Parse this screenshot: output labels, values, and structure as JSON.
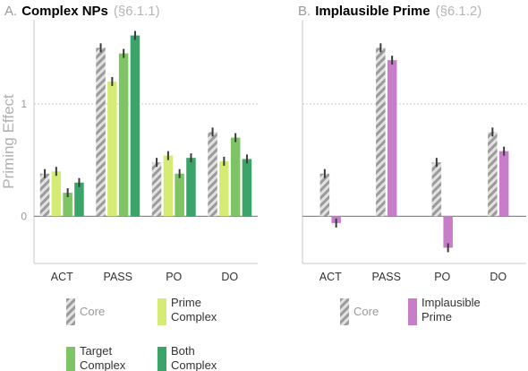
{
  "chart_data": [
    {
      "type": "bar",
      "panel_letter": "A.",
      "title": "Complex NPs",
      "subtitle": "(§6.1.1)",
      "ylabel": "Priming Effect",
      "xlabel": "",
      "ylim": [
        -0.42,
        1.75
      ],
      "yticks": [
        0,
        1
      ],
      "gridlines": [
        0,
        1
      ],
      "categories": [
        "ACT",
        "PASS",
        "PO",
        "DO"
      ],
      "series": [
        {
          "name": "Core",
          "color": "#9e9e9e",
          "pattern": "hatch",
          "values": [
            0.38,
            1.5,
            0.48,
            0.75
          ],
          "errors": [
            0.04,
            0.04,
            0.04,
            0.04
          ]
        },
        {
          "name": "Prime Complex",
          "color": "#d4ec74",
          "pattern": "solid",
          "values": [
            0.4,
            1.2,
            0.54,
            0.49
          ],
          "errors": [
            0.04,
            0.04,
            0.04,
            0.04
          ]
        },
        {
          "name": "Target Complex",
          "color": "#7ec464",
          "pattern": "solid",
          "values": [
            0.21,
            1.45,
            0.38,
            0.7
          ],
          "errors": [
            0.04,
            0.04,
            0.04,
            0.04
          ]
        },
        {
          "name": "Both Complex",
          "color": "#3ba468",
          "pattern": "solid",
          "values": [
            0.3,
            1.61,
            0.52,
            0.51
          ],
          "errors": [
            0.04,
            0.04,
            0.04,
            0.04
          ]
        }
      ],
      "legend": [
        {
          "label": "Core",
          "color": "#9e9e9e",
          "pattern": "hatch"
        },
        {
          "label": "Prime\nComplex",
          "color": "#d4ec74",
          "pattern": "solid"
        },
        {
          "label": "Target\nComplex",
          "color": "#7ec464",
          "pattern": "solid"
        },
        {
          "label": "Both\nComplex",
          "color": "#3ba468",
          "pattern": "solid"
        }
      ]
    },
    {
      "type": "bar",
      "panel_letter": "B.",
      "title": "Implausible Prime",
      "subtitle": "(§6.1.2)",
      "ylabel": "",
      "xlabel": "",
      "ylim": [
        -0.42,
        1.75
      ],
      "yticks": [],
      "gridlines": [
        0,
        1
      ],
      "categories": [
        "ACT",
        "PASS",
        "PO",
        "DO"
      ],
      "series": [
        {
          "name": "Core",
          "color": "#9e9e9e",
          "pattern": "hatch",
          "values": [
            0.38,
            1.5,
            0.48,
            0.75
          ],
          "errors": [
            0.04,
            0.04,
            0.04,
            0.04
          ]
        },
        {
          "name": "Implausible Prime",
          "color": "#c77dc7",
          "pattern": "solid",
          "values": [
            -0.06,
            1.39,
            -0.28,
            0.58
          ],
          "errors": [
            0.04,
            0.04,
            0.04,
            0.04
          ]
        }
      ],
      "legend": [
        {
          "label": "Core",
          "color": "#9e9e9e",
          "pattern": "hatch"
        },
        {
          "label": "Implausible\nPrime",
          "color": "#c77dc7",
          "pattern": "solid"
        }
      ]
    }
  ]
}
